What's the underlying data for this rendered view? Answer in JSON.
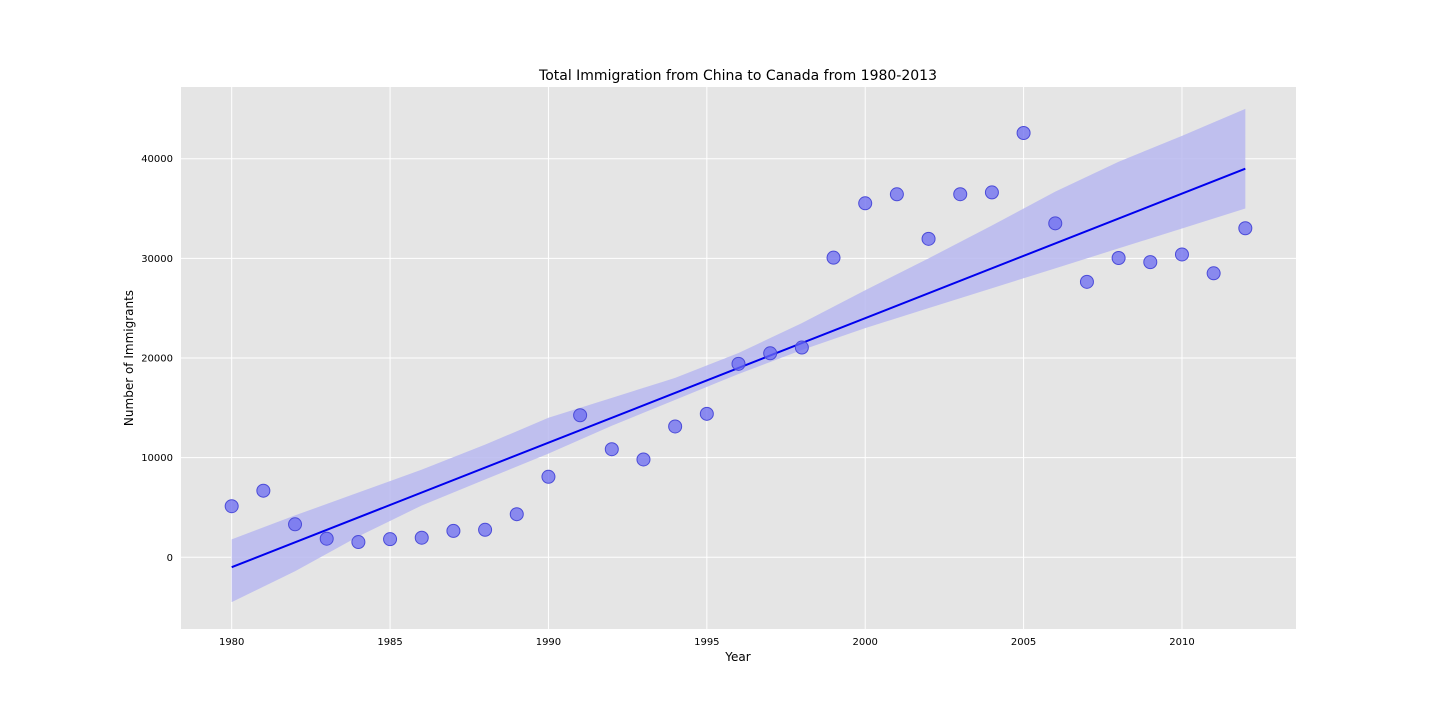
{
  "chart_data": {
    "type": "scatter",
    "title": "Total Immigration from China to Canada from 1980-2013",
    "xlabel": "Year",
    "ylabel": "Number of Immigrants",
    "xlim": [
      1978.4,
      2013.6
    ],
    "ylim": [
      -7200,
      47200
    ],
    "xticks": [
      1980,
      1985,
      1990,
      1995,
      2000,
      2005,
      2010
    ],
    "yticks": [
      0,
      10000,
      20000,
      30000,
      40000
    ],
    "grid": true,
    "colors": {
      "background": "#e5e5e5",
      "grid": "#ffffff",
      "points": "#6a6af0",
      "points_edge": "#4b4bd8",
      "regression_line": "#0000ee",
      "confidence_band": "#b8b8f0"
    },
    "points": {
      "x": [
        1980,
        1981,
        1982,
        1983,
        1984,
        1985,
        1986,
        1987,
        1988,
        1989,
        1990,
        1991,
        1992,
        1993,
        1994,
        1995,
        1996,
        1997,
        1998,
        1999,
        2000,
        2001,
        2002,
        2003,
        2004,
        2005,
        2006,
        2007,
        2008,
        2009,
        2010,
        2011,
        2012
      ],
      "y": [
        5123,
        6682,
        3308,
        1863,
        1527,
        1816,
        1960,
        2643,
        2758,
        4323,
        8076,
        14255,
        10846,
        9817,
        13128,
        14398,
        19415,
        20475,
        21049,
        30069,
        35529,
        36434,
        31961,
        36439,
        36619,
        42584,
        33518,
        27642,
        30037,
        29622,
        30391,
        28502,
        33024
      ]
    },
    "regression": {
      "x": [
        1980,
        2012
      ],
      "y": [
        -1000,
        39000
      ]
    },
    "confidence_band": {
      "x": [
        1980,
        1982,
        1984,
        1986,
        1988,
        1990,
        1992,
        1994,
        1996,
        1998,
        2000,
        2002,
        2004,
        2006,
        2008,
        2010,
        2012
      ],
      "upper": [
        1800,
        4200,
        6500,
        8800,
        11300,
        14000,
        16000,
        18000,
        20500,
        23500,
        26800,
        30000,
        33300,
        36700,
        39700,
        42300,
        45000
      ],
      "lower": [
        -4500,
        -1400,
        2100,
        5200,
        7800,
        10400,
        13200,
        15800,
        18400,
        20800,
        23000,
        25000,
        27000,
        29000,
        31000,
        33000,
        35000
      ]
    }
  }
}
